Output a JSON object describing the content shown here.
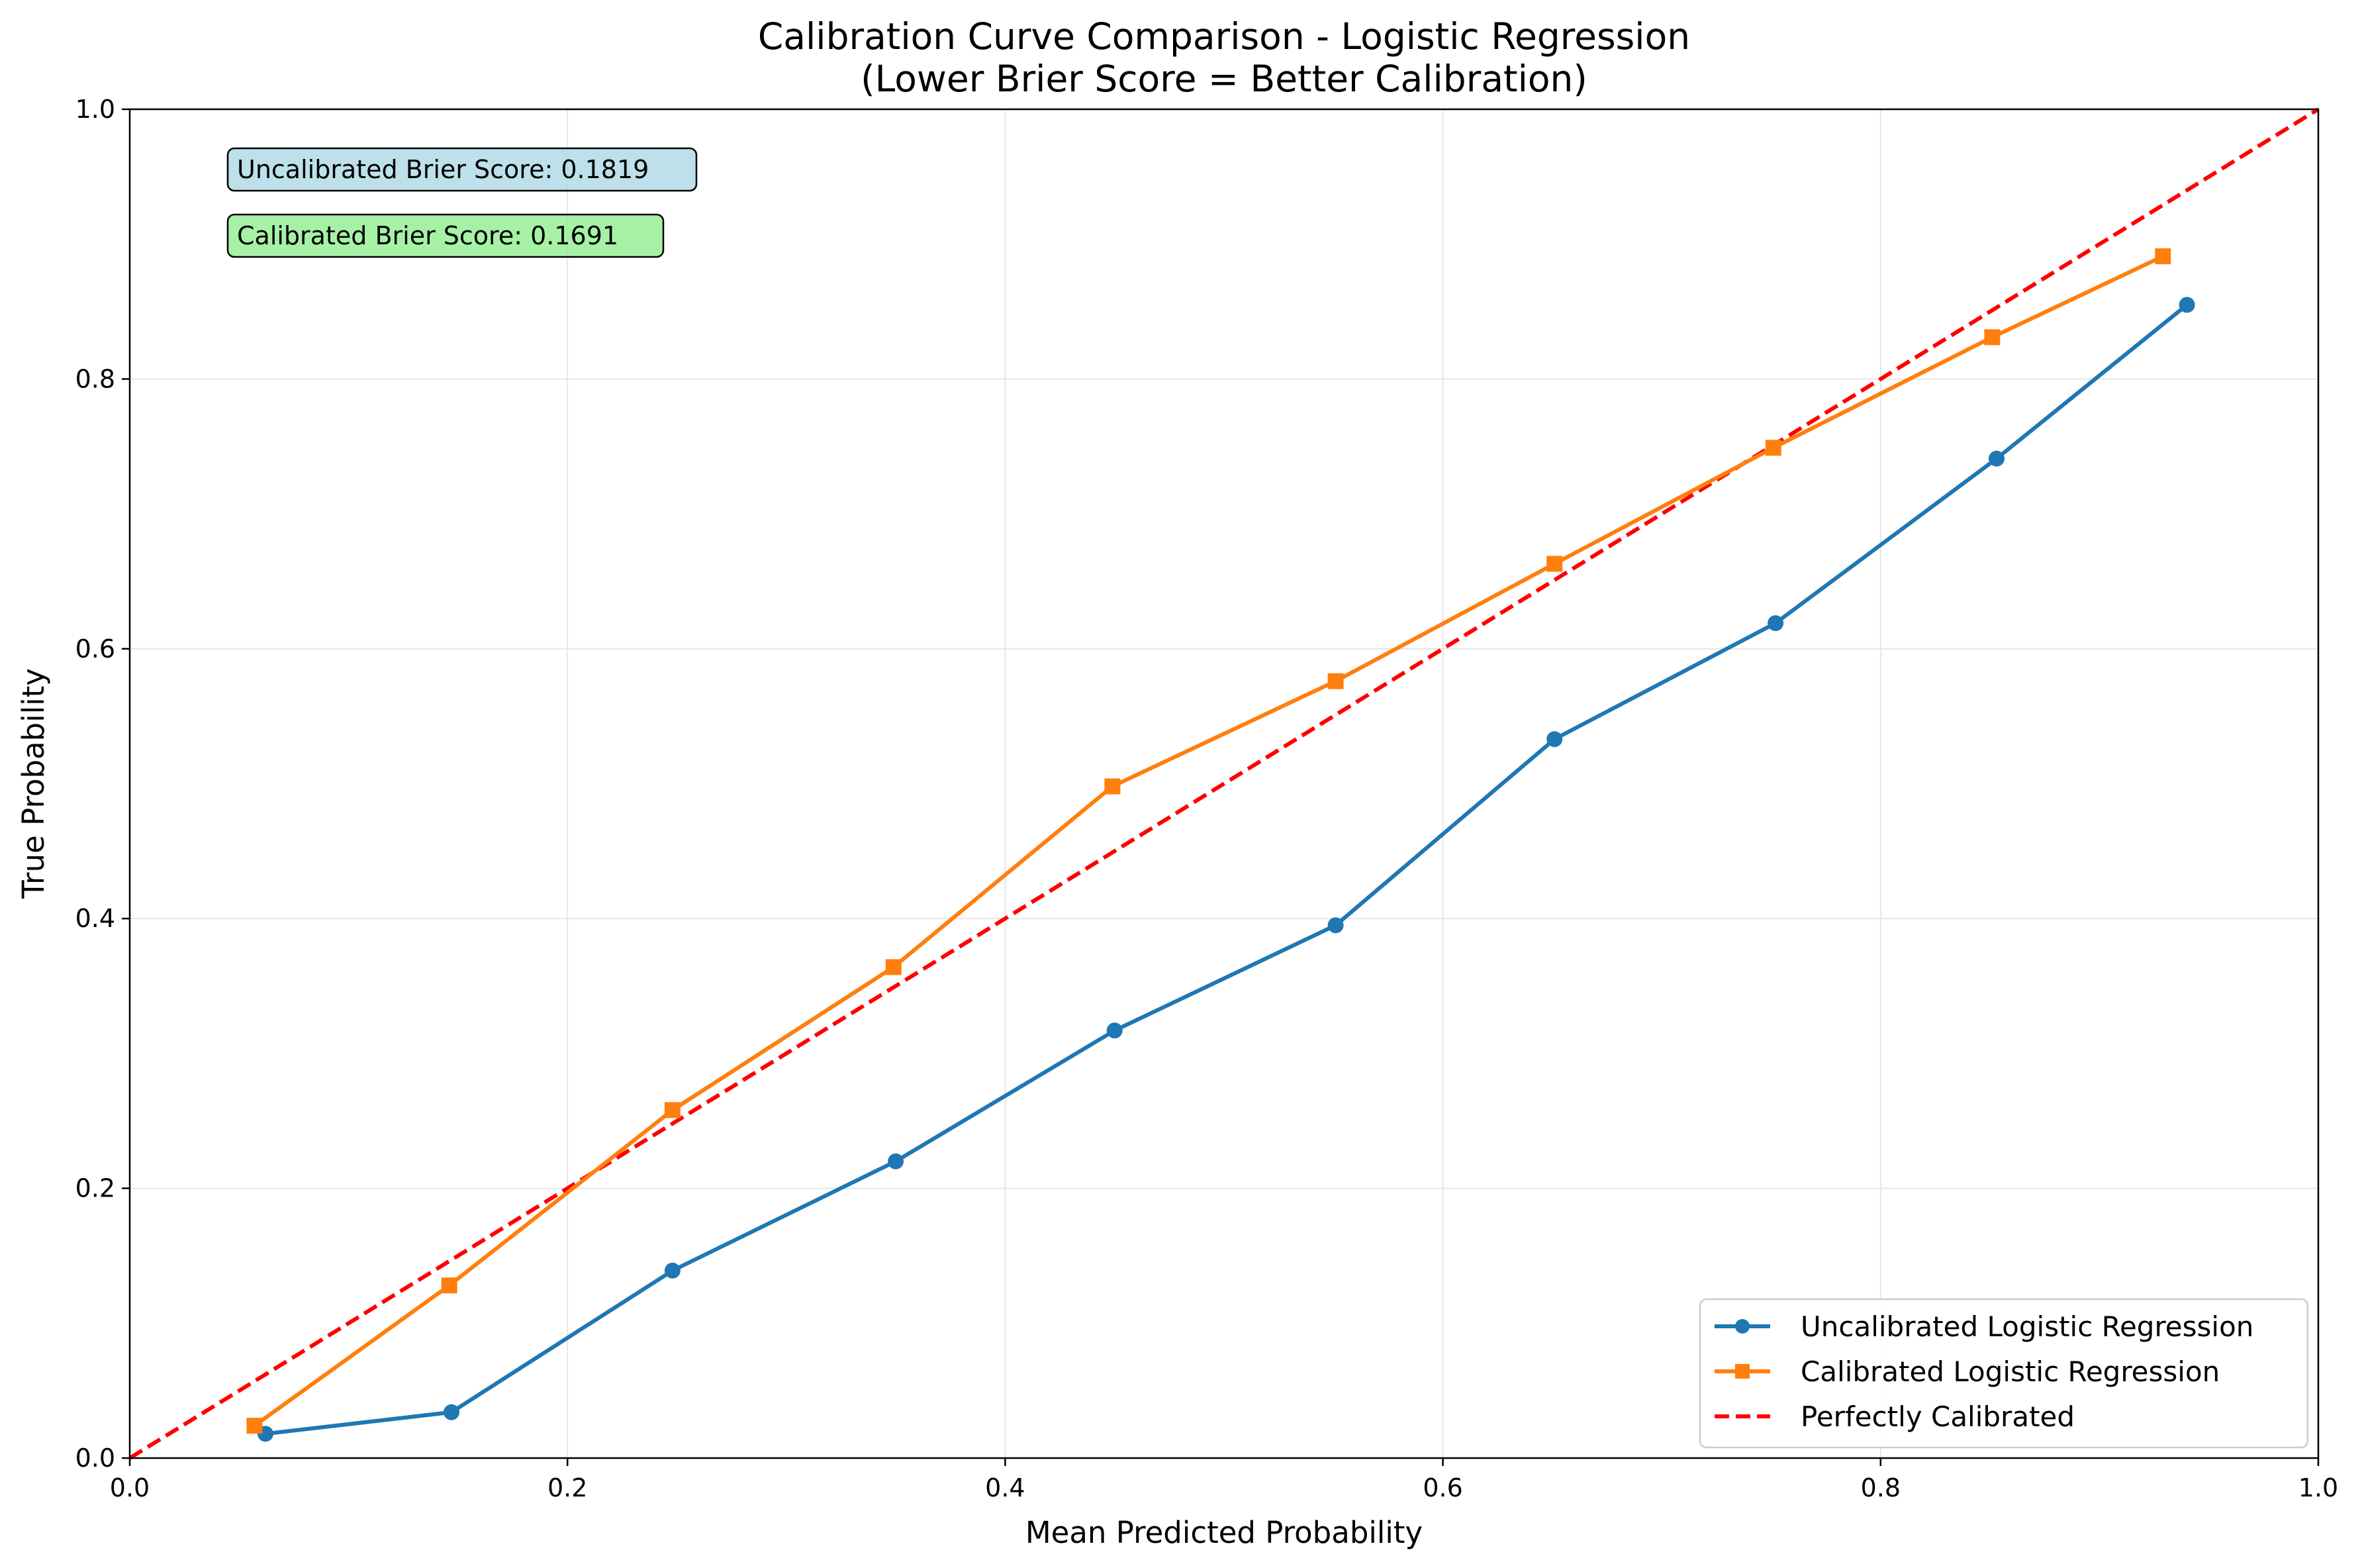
{
  "colors": {
    "uncalibrated": "#1f77b4",
    "calibrated": "#ff7f0e",
    "perfect": "#ff0000",
    "uncal_box_bg": "#add8e6",
    "cal_box_bg": "#90ee90",
    "grid": "#e6e6e6"
  },
  "chart_data": {
    "type": "line",
    "title": "Calibration Curve Comparison - Logistic Regression",
    "subtitle": "(Lower Brier Score = Better Calibration)",
    "xlabel": "Mean Predicted Probability",
    "ylabel": "True Probability",
    "xlim": [
      0.0,
      1.0
    ],
    "ylim": [
      0.0,
      1.0
    ],
    "xticks": [
      "0.0",
      "0.2",
      "0.4",
      "0.6",
      "0.8",
      "1.0"
    ],
    "yticks": [
      "0.0",
      "0.2",
      "0.4",
      "0.6",
      "0.8",
      "1.0"
    ],
    "grid": true,
    "legend_position": "bottom-right",
    "series": [
      {
        "name": "Uncalibrated Logistic Regression",
        "color": "#1f77b4",
        "marker": "circle",
        "linestyle": "solid",
        "x": [
          0.062,
          0.147,
          0.248,
          0.35,
          0.45,
          0.551,
          0.651,
          0.752,
          0.853,
          0.94
        ],
        "y": [
          0.018,
          0.034,
          0.139,
          0.22,
          0.317,
          0.395,
          0.533,
          0.619,
          0.741,
          0.855
        ]
      },
      {
        "name": "Calibrated Logistic Regression",
        "color": "#ff7f0e",
        "marker": "square",
        "linestyle": "solid",
        "x": [
          0.057,
          0.146,
          0.248,
          0.349,
          0.449,
          0.551,
          0.651,
          0.751,
          0.851,
          0.929
        ],
        "y": [
          0.024,
          0.128,
          0.258,
          0.364,
          0.498,
          0.576,
          0.663,
          0.749,
          0.831,
          0.891
        ]
      },
      {
        "name": "Perfectly Calibrated",
        "color": "#ff0000",
        "marker": "none",
        "linestyle": "dashed",
        "x": [
          0.0,
          1.0
        ],
        "y": [
          0.0,
          1.0
        ]
      }
    ],
    "annotations": [
      {
        "text": "Uncalibrated Brier Score: 0.1819",
        "style": "uncal"
      },
      {
        "text": "Calibrated Brier Score: 0.1691",
        "style": "cal"
      }
    ]
  }
}
